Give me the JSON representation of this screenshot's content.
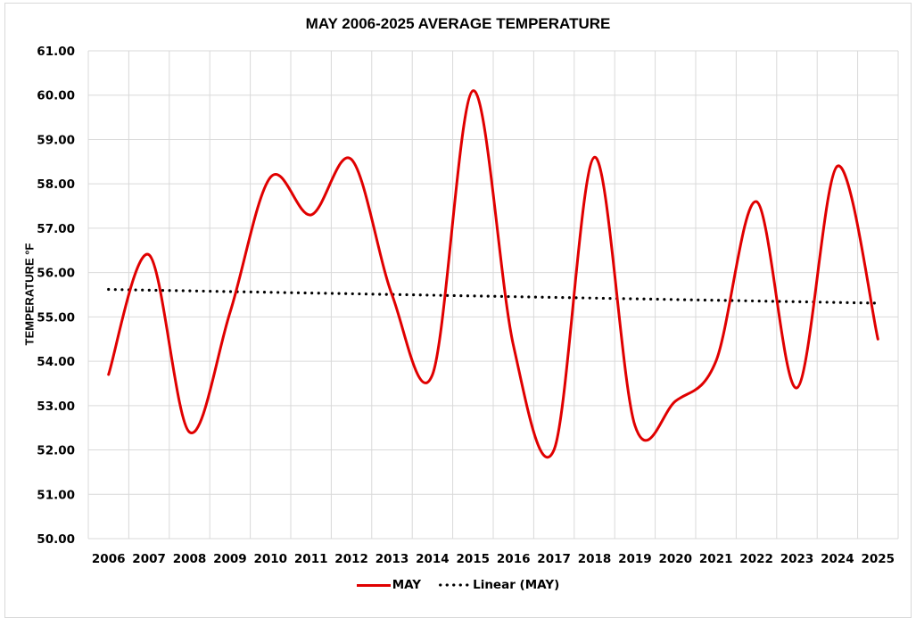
{
  "chart_data": {
    "type": "line",
    "title": "MAY 2006-2025 AVERAGE TEMPERATURE",
    "xlabel": "",
    "ylabel": "TEMPERATURE °F",
    "categories": [
      "2006",
      "2007",
      "2008",
      "2009",
      "2010",
      "2011",
      "2012",
      "2013",
      "2014",
      "2015",
      "2016",
      "2017",
      "2018",
      "2019",
      "2020",
      "2021",
      "2022",
      "2023",
      "2024",
      "2025"
    ],
    "ylim": [
      50,
      61
    ],
    "yticks": [
      "50.00",
      "51.00",
      "52.00",
      "53.00",
      "54.00",
      "55.00",
      "56.00",
      "57.00",
      "58.00",
      "59.00",
      "60.00",
      "61.00"
    ],
    "grid": true,
    "smooth": true,
    "series": [
      {
        "name": "MAY",
        "color": "#e00000",
        "style": "solid",
        "values": [
          53.7,
          56.4,
          52.4,
          55.1,
          58.15,
          57.3,
          58.55,
          55.5,
          53.7,
          60.1,
          54.35,
          52.0,
          58.6,
          52.55,
          53.1,
          54.0,
          57.6,
          53.4,
          58.4,
          54.5
        ]
      },
      {
        "name": "Linear (MAY)",
        "color": "#000000",
        "style": "dotted",
        "trendline": "linear",
        "values_endpoints": [
          55.62,
          55.31
        ]
      }
    ],
    "legend": {
      "position": "bottom",
      "entries": [
        "MAY",
        "Linear (MAY)"
      ]
    }
  }
}
